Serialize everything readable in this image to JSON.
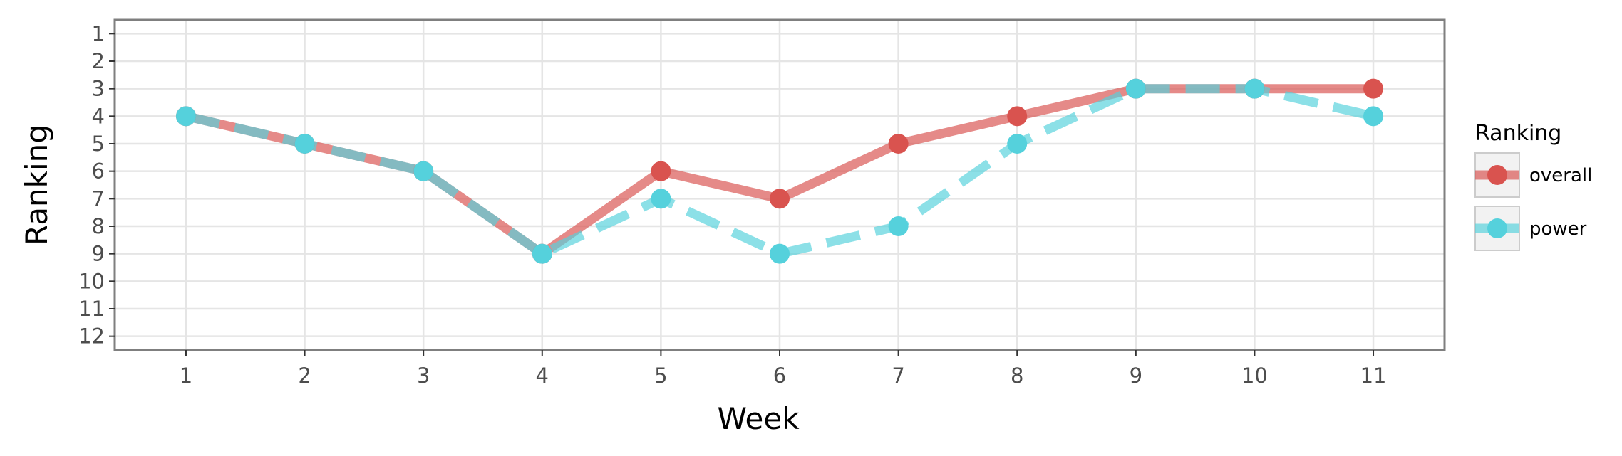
{
  "chart_data": {
    "type": "line",
    "title": "",
    "xlabel": "Week",
    "ylabel": "Ranking",
    "x": [
      1,
      2,
      3,
      4,
      5,
      6,
      7,
      8,
      9,
      10,
      11
    ],
    "xlim": [
      0.4,
      11.6
    ],
    "ylim": [
      12.5,
      0.5
    ],
    "y_reversed": true,
    "y_ticks": [
      1,
      2,
      3,
      4,
      5,
      6,
      7,
      8,
      9,
      10,
      11,
      12
    ],
    "grid": true,
    "legend": {
      "title": "Ranking",
      "position": "right"
    },
    "series": [
      {
        "name": "overall",
        "color": "#d9534f",
        "line_style": "solid",
        "values": [
          4,
          5,
          6,
          9,
          6,
          7,
          5,
          4,
          3,
          3,
          3
        ]
      },
      {
        "name": "power",
        "color": "#55d1dc",
        "line_style": "dashed",
        "values": [
          4,
          5,
          6,
          9,
          7,
          9,
          8,
          5,
          3,
          3,
          4
        ]
      }
    ]
  }
}
